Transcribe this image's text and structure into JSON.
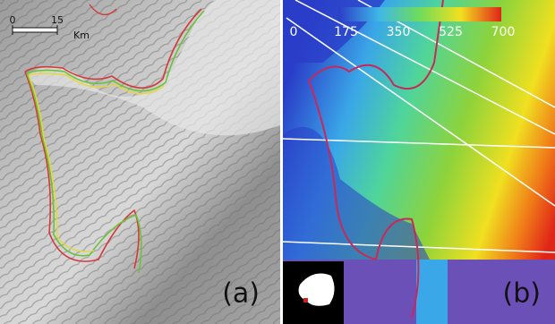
{
  "panel_a": {
    "label": "(a)",
    "scale_bar": {
      "ticks": [
        0,
        15
      ],
      "lim": [
        0,
        15
      ],
      "unit": "Km"
    }
  },
  "panel_b": {
    "label": "(b)",
    "colorbar": {
      "lim": [
        0,
        700
      ],
      "ticks": [
        0,
        175,
        350,
        525,
        700
      ]
    }
  }
}
